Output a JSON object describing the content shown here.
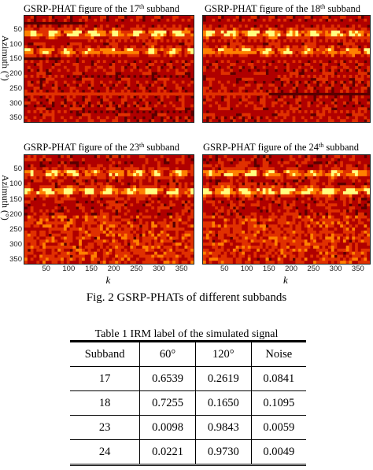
{
  "figure": {
    "panels": [
      {
        "title_pre": "GSRP-PHAT figure of the 17",
        "title_sup": "th",
        "title_post": " subband",
        "peaks": [
          60,
          120
        ]
      },
      {
        "title_pre": "GSRP-PHAT figure of the 18",
        "title_sup": "th",
        "title_post": " subband",
        "peaks": [
          60,
          120
        ]
      },
      {
        "title_pre": "GSRP-PHAT figure of the 23",
        "title_sup": "th",
        "title_post": " subband",
        "peaks": [
          60,
          120
        ]
      },
      {
        "title_pre": "GSRP-PHAT figure of the 24",
        "title_sup": "th",
        "title_post": " subband",
        "peaks": [
          60,
          120
        ]
      }
    ],
    "ylabel": "Azimuth (°)",
    "xlabel": "k",
    "yticks": [
      "50",
      "100",
      "150",
      "200",
      "250",
      "300",
      "350"
    ],
    "xticks": [
      "50",
      "100",
      "150",
      "200",
      "250",
      "300",
      "350"
    ],
    "colormap": [
      "#5a0000",
      "#b00000",
      "#e03000",
      "#ff8000",
      "#ffff80"
    ],
    "caption": "Fig. 2   GSRP-PHATs of different subbands"
  },
  "table": {
    "caption": "Table 1   IRM label of the simulated signal",
    "headers": [
      "Subband",
      "60°",
      "120°",
      "Noise"
    ],
    "rows": [
      [
        "17",
        "0.6539",
        "0.2619",
        "0.0841"
      ],
      [
        "18",
        "0.7255",
        "0.1650",
        "0.1095"
      ],
      [
        "23",
        "0.0098",
        "0.9843",
        "0.0059"
      ],
      [
        "24",
        "0.0221",
        "0.9730",
        "0.0049"
      ]
    ]
  }
}
